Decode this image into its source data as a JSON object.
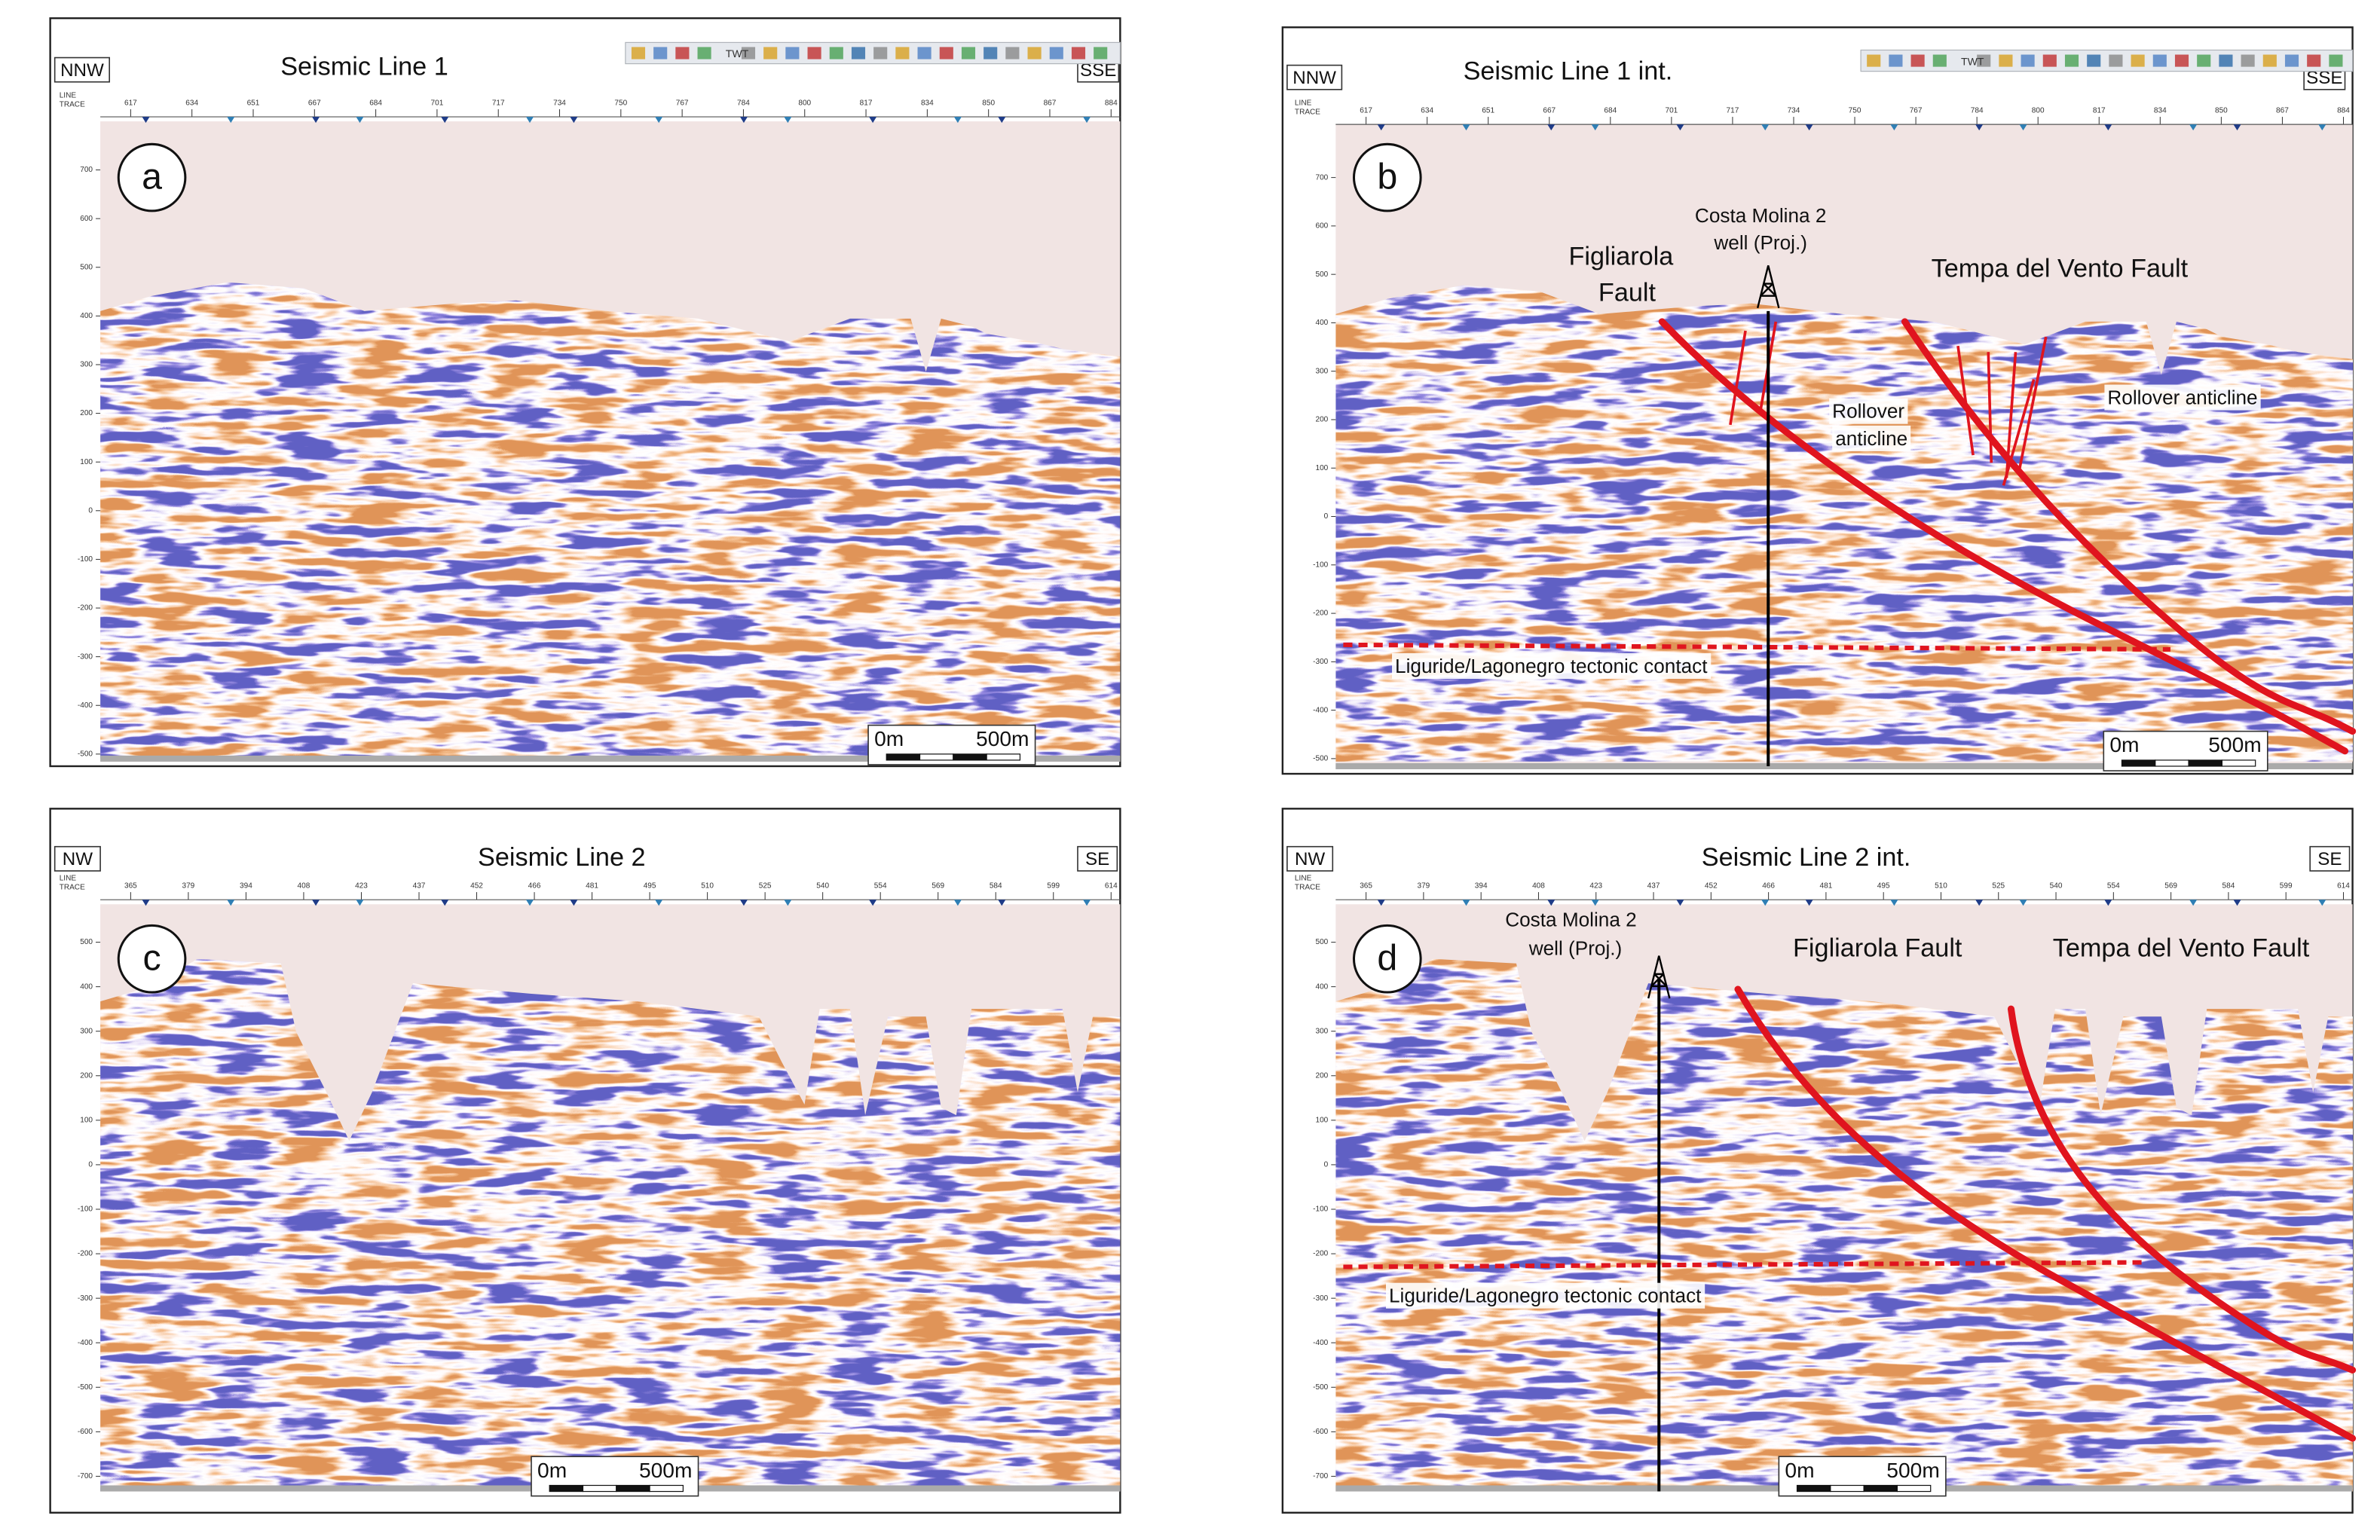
{
  "panels": [
    {
      "letter": "a",
      "title": "Seismic Line 1",
      "left": "NNW",
      "right": "SSE",
      "toolbar": "TWT",
      "header": [
        "LINE",
        "TRACE"
      ],
      "traces": [
        617,
        634,
        651,
        667,
        684,
        701,
        717,
        734,
        750,
        767,
        784,
        800,
        817,
        834,
        850,
        867,
        884
      ],
      "twt_ticks": [
        700,
        600,
        500,
        400,
        300,
        200,
        100,
        0,
        -100,
        -200,
        -300,
        -400,
        -500
      ],
      "scale": [
        "0m",
        "500m"
      ],
      "annotations": []
    },
    {
      "letter": "b",
      "title": "Seismic Line 1 int.",
      "left": "NNW",
      "right": "SSE",
      "toolbar": "TWT",
      "header": [
        "LINE",
        "TRACE"
      ],
      "traces": [
        617,
        634,
        651,
        667,
        684,
        701,
        717,
        734,
        750,
        767,
        784,
        800,
        817,
        834,
        850,
        867,
        884
      ],
      "twt_ticks": [
        700,
        600,
        500,
        400,
        300,
        200,
        100,
        0,
        -100,
        -200,
        -300,
        -400,
        -500
      ],
      "scale": [
        "0m",
        "500m"
      ],
      "annotations": [
        "Costa Molina 2",
        "well (Proj.)",
        "Figliarola",
        "Fault",
        "Tempa del Vento Fault",
        "Rollover",
        "anticline",
        "Rollover anticline",
        "Liguride/Lagonegro tectonic contact"
      ]
    },
    {
      "letter": "c",
      "title": "Seismic Line 2",
      "left": "NW",
      "right": "SE",
      "header": [
        "LINE",
        "TRACE"
      ],
      "traces": [
        365,
        379,
        394,
        408,
        423,
        437,
        452,
        466,
        481,
        495,
        510,
        525,
        540,
        554,
        569,
        584,
        599,
        614
      ],
      "twt_ticks": [
        500,
        400,
        300,
        200,
        100,
        0,
        -100,
        -200,
        -300,
        -400,
        -500,
        -600,
        -700
      ],
      "scale": [
        "0m",
        "500m"
      ],
      "annotations": []
    },
    {
      "letter": "d",
      "title": "Seismic Line 2 int.",
      "left": "NW",
      "right": "SE",
      "header": [
        "LINE",
        "TRACE"
      ],
      "traces": [
        365,
        379,
        394,
        408,
        423,
        437,
        452,
        466,
        481,
        495,
        510,
        525,
        540,
        554,
        569,
        584,
        599,
        614
      ],
      "twt_ticks": [
        500,
        400,
        300,
        200,
        100,
        0,
        -100,
        -200,
        -300,
        -400,
        -500,
        -600,
        -700
      ],
      "scale": [
        "0m",
        "500m"
      ],
      "annotations": [
        "Costa Molina 2",
        "well (Proj.)",
        "Figliarola Fault",
        "Tempa del Vento Fault",
        "Liguride/Lagonegro tectonic contact"
      ]
    }
  ]
}
